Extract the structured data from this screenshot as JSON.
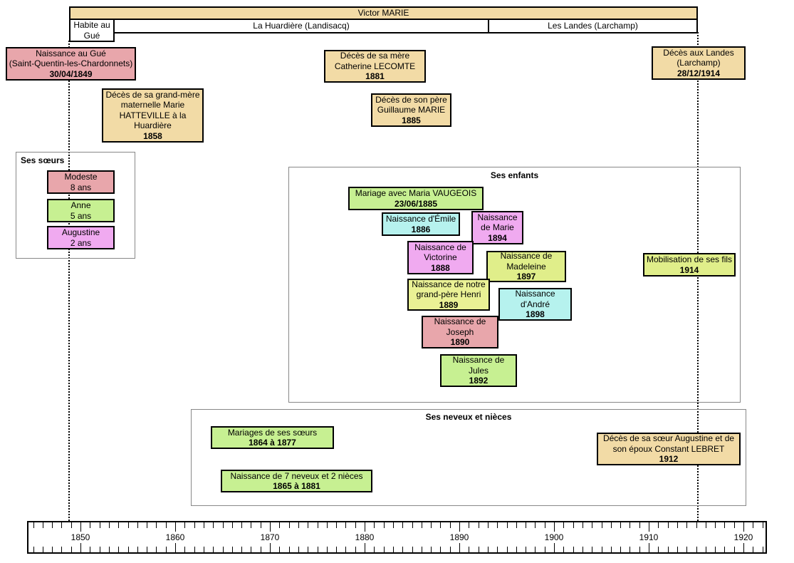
{
  "header": {
    "person": "Victor MARIE",
    "residence_note": "Habite au\nGué",
    "residences": [
      "La Huardière (Landisacq)",
      "Les Landes (Larchamp)"
    ]
  },
  "groups": {
    "sisters": {
      "title": "Ses sœurs"
    },
    "children": {
      "title": "Ses enfants"
    },
    "nephews": {
      "title": "Ses neveux et nièces"
    }
  },
  "events": {
    "naissance": {
      "label": "Naissance au Gué\n(Saint-Quentin-les-Chardonnets)",
      "date": "30/04/1849"
    },
    "grandmere": {
      "label": "Décès de sa grand-mère\nmaternelle Marie\nHATTEVILLE à la\nHuardière",
      "date": "1858"
    },
    "mere": {
      "label": "Décès de sa mère\nCatherine LECOMTE",
      "date": "1881"
    },
    "pere": {
      "label": "Décès de son père\nGuillaume MARIE",
      "date": "1885"
    },
    "deces": {
      "label": "Décès aux Landes\n(Larchamp)",
      "date": "28/12/1914"
    },
    "modeste": {
      "label": "Modeste\n8 ans"
    },
    "anne": {
      "label": "Anne\n5 ans"
    },
    "augustine": {
      "label": "Augustine\n2 ans"
    },
    "mariage": {
      "label": "Mariage avec Maria VAUGEOIS",
      "date": "23/06/1885"
    },
    "emile": {
      "label": "Naissance d'Émile",
      "date": "1886"
    },
    "marie": {
      "label": "Naissance\nde Marie",
      "date": "1894"
    },
    "victorine": {
      "label": "Naissance de\nVictorine",
      "date": "1888"
    },
    "madeleine": {
      "label": "Naissance de\nMadeleine",
      "date": "1897"
    },
    "henri": {
      "label": "Naissance de notre\ngrand-père Henri",
      "date": "1889"
    },
    "andre": {
      "label": "Naissance\nd'André",
      "date": "1898"
    },
    "joseph": {
      "label": "Naissance de\nJoseph",
      "date": "1890"
    },
    "jules": {
      "label": "Naissance de\nJules",
      "date": "1892"
    },
    "mobilisation": {
      "label": "Mobilisation de ses fils",
      "date": "1914"
    },
    "mariages_soeurs": {
      "label": "Mariages de ses sœurs",
      "date": "1864 à 1877"
    },
    "neveux": {
      "label": "Naissance de 7 neveux et 2 nièces",
      "date": "1865 à 1881"
    },
    "augustine_lebret": {
      "label": "Décès de sa sœur Augustine et de\nson époux Constant LEBRET",
      "date": "1912"
    }
  },
  "colors": {
    "tan": "#f2dba6",
    "pink": "#e8a6ab",
    "green": "#c7f092",
    "violet": "#f0aaf0",
    "cyan": "#b6f2ee",
    "yellow": "#eaf195",
    "yellowgreen": "#e0ee8a",
    "white": "#ffffff"
  },
  "timeline": {
    "first_year": 1845,
    "last_year": 1922,
    "decades": [
      1850,
      1860,
      1870,
      1880,
      1890,
      1900,
      1910,
      1920
    ]
  }
}
